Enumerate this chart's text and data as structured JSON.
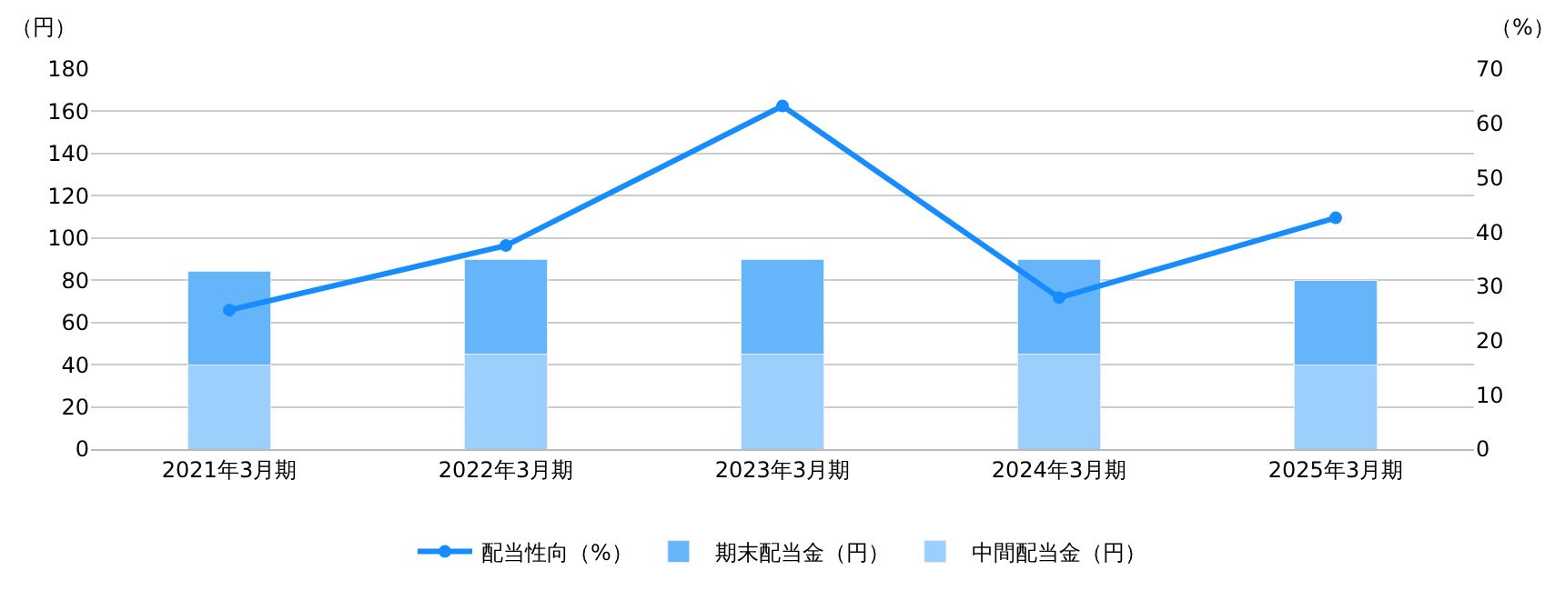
{
  "chart_data": {
    "type": "bar",
    "stacked": true,
    "categories": [
      "2021年3月期",
      "2022年3月期",
      "2023年3月期",
      "2024年3月期",
      "2025年3月期"
    ],
    "ylabel": "（円）",
    "y2label": "（%）",
    "ylim": [
      0,
      180
    ],
    "yticks": [
      0,
      20,
      40,
      60,
      80,
      100,
      120,
      140,
      160,
      180
    ],
    "y2lim": [
      0,
      70
    ],
    "y2ticks": [
      0,
      10,
      20,
      30,
      40,
      50,
      60,
      70
    ],
    "grid": "y",
    "legend": "bottom",
    "series": [
      {
        "name": "中間配当金（円）",
        "color": "#9dcffd",
        "values": [
          40,
          45,
          45,
          45,
          40
        ]
      },
      {
        "name": "期末配当金（円）",
        "color": "#66b5fb",
        "values": [
          44,
          45,
          45,
          45,
          40
        ]
      },
      {
        "name": "配当性向（%）",
        "type": "line",
        "axis": "y2",
        "marker": "circle",
        "color": "#168cff",
        "values": [
          25.6,
          37.5,
          63.2,
          27.9,
          42.6
        ]
      }
    ]
  }
}
